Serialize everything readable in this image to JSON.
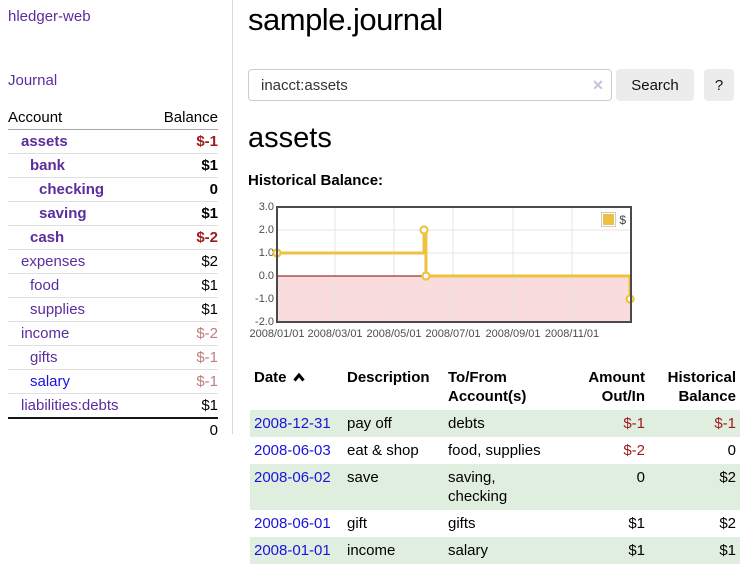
{
  "brand": {
    "label": "hledger-web"
  },
  "nav": {
    "journal": "Journal"
  },
  "sidebar": {
    "col_account": "Account",
    "col_balance": "Balance",
    "accounts": [
      {
        "name": "assets",
        "level": 1,
        "weight": "bold",
        "link_style": "purple",
        "balance": "$-1",
        "balance_style": "neg-strong"
      },
      {
        "name": "bank",
        "level": 2,
        "weight": "bold",
        "link_style": "purple",
        "balance": "$1",
        "balance_style": "pos"
      },
      {
        "name": "checking",
        "level": 3,
        "weight": "bold",
        "link_style": "purple",
        "balance": "0",
        "balance_style": "pos"
      },
      {
        "name": "saving",
        "level": 3,
        "weight": "bold",
        "link_style": "purple",
        "balance": "$1",
        "balance_style": "pos"
      },
      {
        "name": "cash",
        "level": 2,
        "weight": "bold",
        "link_style": "purple",
        "balance": "$-2",
        "balance_style": "neg-strong"
      },
      {
        "name": "expenses",
        "level": 1,
        "weight": "normal",
        "link_style": "purple",
        "balance": "$2",
        "balance_style": "pos"
      },
      {
        "name": "food",
        "level": 2,
        "weight": "normal",
        "link_style": "purple",
        "balance": "$1",
        "balance_style": "pos"
      },
      {
        "name": "supplies",
        "level": 2,
        "weight": "normal",
        "link_style": "purple",
        "balance": "$1",
        "balance_style": "pos"
      },
      {
        "name": "income",
        "level": 1,
        "weight": "normal",
        "link_style": "purple",
        "balance": "$-2",
        "balance_style": "neg-muted"
      },
      {
        "name": "gifts",
        "level": 2,
        "weight": "normal",
        "link_style": "purple",
        "balance": "$-1",
        "balance_style": "neg-muted"
      },
      {
        "name": "salary",
        "level": 2,
        "weight": "normal",
        "link_style": "blue",
        "balance": "$-1",
        "balance_style": "neg-muted"
      },
      {
        "name": "liabilities:debts",
        "level": 1,
        "weight": "normal",
        "link_style": "purple",
        "balance": "$1",
        "balance_style": "pos"
      }
    ],
    "total": "0"
  },
  "main": {
    "title": "sample.journal",
    "account_title": "assets",
    "chart_label": "Historical Balance:"
  },
  "search": {
    "value": "inacct:assets",
    "clear_icon": "x-clear",
    "button": "Search",
    "help": "?"
  },
  "chart_data": {
    "type": "line",
    "title": "Historical Balance",
    "legend": [
      {
        "label": "$",
        "color": "#edc240"
      }
    ],
    "legend_position": "top-right",
    "grid": true,
    "ylim": [
      -2,
      3
    ],
    "yticks": [
      "3.0",
      "2.0",
      "1.0",
      "0.0",
      "-1.0",
      "-2.0"
    ],
    "x_start": "2008-01-01",
    "x_span_days": 366,
    "xticks": [
      {
        "date": "2008-01-01",
        "label": "2008/01/01"
      },
      {
        "date": "2008-03-01",
        "label": "2008/03/01"
      },
      {
        "date": "2008-05-01",
        "label": "2008/05/01"
      },
      {
        "date": "2008-07-01",
        "label": "2008/07/01"
      },
      {
        "date": "2008-09-01",
        "label": "2008/09/01"
      },
      {
        "date": "2008-11-01",
        "label": "2008/11/01"
      }
    ],
    "series": [
      {
        "name": "$",
        "color": "#edc240",
        "style": "step",
        "points": [
          [
            "2008-01-01",
            1
          ],
          [
            "2008-06-01",
            2
          ],
          [
            "2008-06-03",
            0
          ],
          [
            "2008-12-31",
            -1
          ]
        ]
      }
    ],
    "negative_region_color": "#fbdcdc",
    "zero_line_color": "#8b0000",
    "gridline_color": "#e5e5e5",
    "border_color": "#4a4a4a"
  },
  "register": {
    "headers": {
      "date": "Date",
      "sort_icon": "chevron-up",
      "description": "Description",
      "account": "To/From Account(s)",
      "amount": "Amount Out/In",
      "balance": "Historical Balance"
    },
    "rows": [
      {
        "date": "2008-12-31",
        "description": "pay off",
        "accounts": "debts",
        "amount": "$-1",
        "amount_style": "neg",
        "balance": "$-1",
        "balance_style": "neg"
      },
      {
        "date": "2008-06-03",
        "description": "eat & shop",
        "accounts": "food, supplies",
        "amount": "$-2",
        "amount_style": "neg",
        "balance": "0",
        "balance_style": "pos"
      },
      {
        "date": "2008-06-02",
        "description": "save",
        "accounts": "saving, checking",
        "amount": "0",
        "amount_style": "pos",
        "balance": "$2",
        "balance_style": "pos"
      },
      {
        "date": "2008-06-01",
        "description": "gift",
        "accounts": "gifts",
        "amount": "$1",
        "amount_style": "pos",
        "balance": "$2",
        "balance_style": "pos"
      },
      {
        "date": "2008-01-01",
        "description": "income",
        "accounts": "salary",
        "amount": "$1",
        "amount_style": "pos",
        "balance": "$1",
        "balance_style": "pos"
      }
    ]
  }
}
